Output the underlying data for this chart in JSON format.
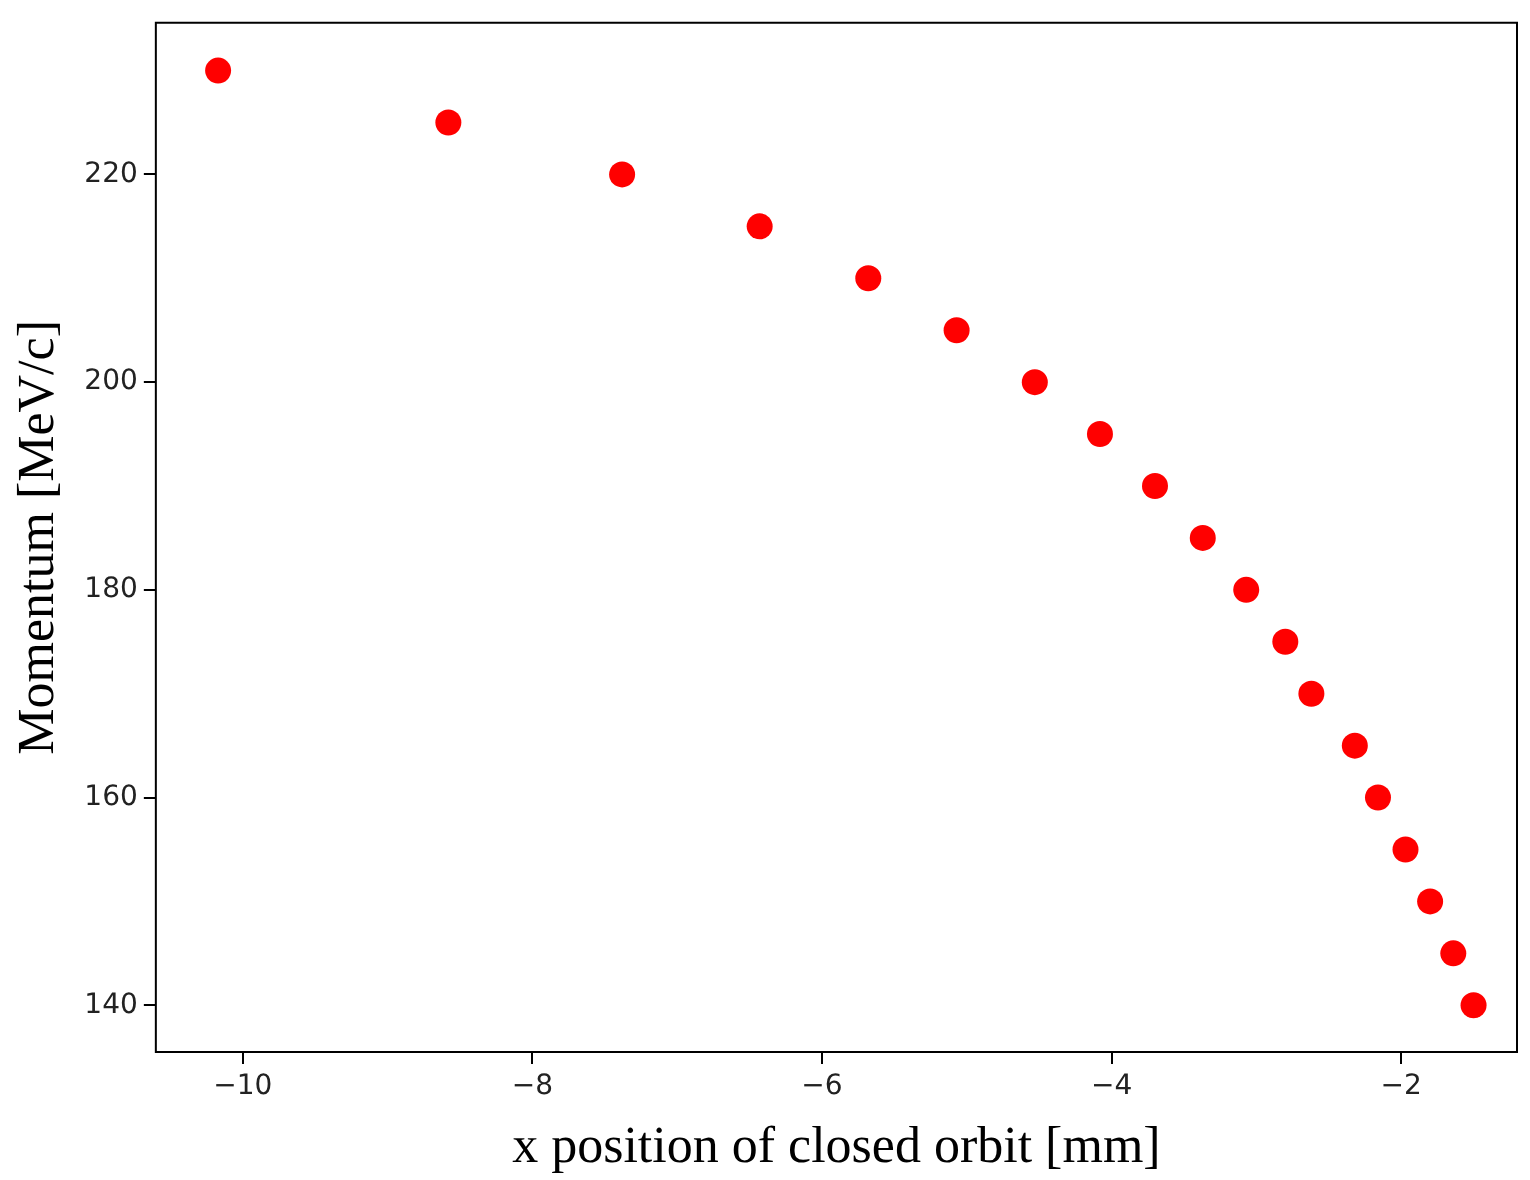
{
  "chart_data": {
    "type": "scatter",
    "xlabel": "x position of closed orbit [mm]",
    "ylabel": "Momentum [MeV/c]",
    "x": [
      -10.17,
      -8.58,
      -7.38,
      -6.43,
      -5.68,
      -5.07,
      -4.53,
      -4.08,
      -3.7,
      -3.37,
      -3.07,
      -2.8,
      -2.62,
      -2.32,
      -2.16,
      -1.97,
      -1.8,
      -1.64,
      -1.5
    ],
    "series": [
      {
        "color": "#ff0000",
        "values": [
          230,
          225,
          220,
          215,
          210,
          205,
          200,
          195,
          190,
          185,
          180,
          175,
          170,
          165,
          160,
          155,
          150,
          145,
          140
        ]
      }
    ],
    "xlim": [
      -10.6,
      -1.2
    ],
    "xticks": [
      {
        "value": -10,
        "label": "−10"
      },
      {
        "value": -8,
        "label": "−8"
      },
      {
        "value": -6,
        "label": "−6"
      },
      {
        "value": -4,
        "label": "−4"
      },
      {
        "value": -2,
        "label": "−2"
      }
    ],
    "ylim": [
      135.5,
      234.6
    ],
    "yticks": [
      140,
      160,
      180,
      200,
      220
    ],
    "grid": false,
    "legend": false,
    "marker": "circle"
  }
}
